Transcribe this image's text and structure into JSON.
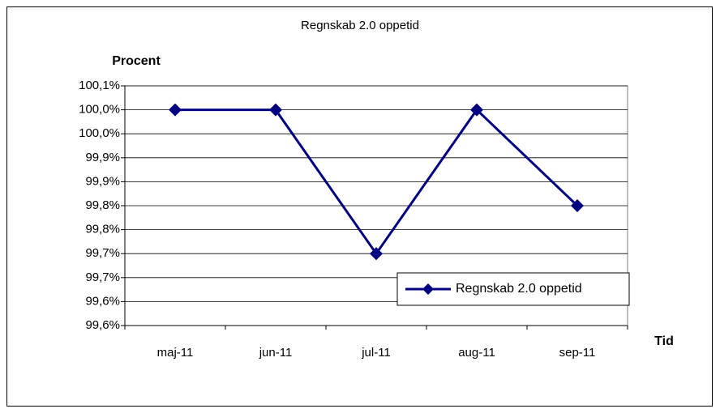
{
  "chart_data": {
    "type": "line",
    "title": "Regnskab 2.0 oppetid",
    "y_label": "Procent",
    "x_label": "Tid",
    "categories": [
      "maj-11",
      "jun-11",
      "jul-11",
      "aug-11",
      "sep-11"
    ],
    "series": [
      {
        "name": "Regnskab 2.0 oppetid",
        "color": "#000080",
        "values": [
          100.0,
          100.0,
          99.7,
          100.0,
          99.8
        ]
      }
    ],
    "ylim": [
      99.55,
      100.05
    ],
    "yticks": [
      {
        "value": 99.55,
        "label": "99,6%"
      },
      {
        "value": 99.6,
        "label": "99,6%"
      },
      {
        "value": 99.65,
        "label": "99,7%"
      },
      {
        "value": 99.7,
        "label": "99,7%"
      },
      {
        "value": 99.75,
        "label": "99,8%"
      },
      {
        "value": 99.8,
        "label": "99,8%"
      },
      {
        "value": 99.85,
        "label": "99,9%"
      },
      {
        "value": 99.9,
        "label": "99,9%"
      },
      {
        "value": 99.95,
        "label": "100,0%"
      },
      {
        "value": 100.0,
        "label": "100,0%"
      },
      {
        "value": 100.05,
        "label": "100,1%"
      }
    ],
    "grid": true,
    "legend": "lower right"
  }
}
